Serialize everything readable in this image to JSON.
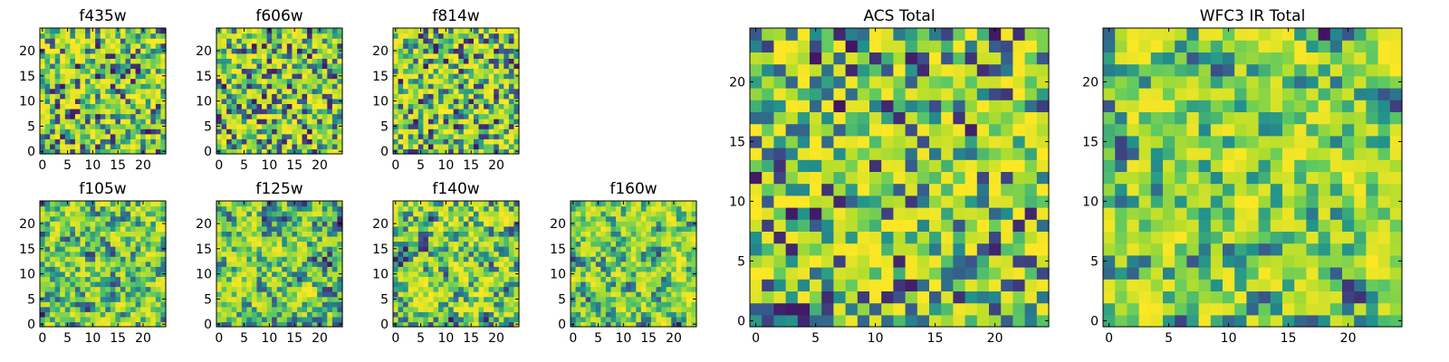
{
  "chart_data": [
    {
      "type": "heatmap",
      "title": "f435w",
      "grid_size": 25,
      "colormap": "viridis",
      "seed": 11,
      "smooth": 0,
      "xticks": [
        "0",
        "5",
        "10",
        "15",
        "20"
      ],
      "yticks": [
        "0",
        "5",
        "10",
        "15",
        "20"
      ],
      "xlim": [
        -0.5,
        24.5
      ],
      "ylim": [
        -0.5,
        24.5
      ]
    },
    {
      "type": "heatmap",
      "title": "f606w",
      "grid_size": 25,
      "colormap": "viridis",
      "seed": 23,
      "smooth": 0,
      "xticks": [
        "0",
        "5",
        "10",
        "15",
        "20"
      ],
      "yticks": [
        "0",
        "5",
        "10",
        "15",
        "20"
      ],
      "xlim": [
        -0.5,
        24.5
      ],
      "ylim": [
        -0.5,
        24.5
      ]
    },
    {
      "type": "heatmap",
      "title": "f814w",
      "grid_size": 25,
      "colormap": "viridis",
      "seed": 37,
      "smooth": 0,
      "xticks": [
        "0",
        "5",
        "10",
        "15",
        "20"
      ],
      "yticks": [
        "0",
        "5",
        "10",
        "15",
        "20"
      ],
      "xlim": [
        -0.5,
        24.5
      ],
      "ylim": [
        -0.5,
        24.5
      ]
    },
    {
      "type": "heatmap",
      "title": "f105w",
      "grid_size": 25,
      "colormap": "viridis",
      "seed": 41,
      "smooth": 1,
      "xticks": [
        "0",
        "5",
        "10",
        "15",
        "20"
      ],
      "yticks": [
        "0",
        "5",
        "10",
        "15",
        "20"
      ],
      "xlim": [
        -0.5,
        24.5
      ],
      "ylim": [
        -0.5,
        24.5
      ]
    },
    {
      "type": "heatmap",
      "title": "f125w",
      "grid_size": 25,
      "colormap": "viridis",
      "seed": 53,
      "smooth": 1,
      "xticks": [
        "0",
        "5",
        "10",
        "15",
        "20"
      ],
      "yticks": [
        "0",
        "5",
        "10",
        "15",
        "20"
      ],
      "xlim": [
        -0.5,
        24.5
      ],
      "ylim": [
        -0.5,
        24.5
      ]
    },
    {
      "type": "heatmap",
      "title": "f140w",
      "grid_size": 25,
      "colormap": "viridis",
      "seed": 67,
      "smooth": 1,
      "xticks": [
        "0",
        "5",
        "10",
        "15",
        "20"
      ],
      "yticks": [
        "0",
        "5",
        "10",
        "15",
        "20"
      ],
      "xlim": [
        -0.5,
        24.5
      ],
      "ylim": [
        -0.5,
        24.5
      ]
    },
    {
      "type": "heatmap",
      "title": "f160w",
      "grid_size": 25,
      "colormap": "viridis",
      "seed": 79,
      "smooth": 1,
      "xticks": [
        "0",
        "5",
        "10",
        "15",
        "20"
      ],
      "yticks": [
        "0",
        "5",
        "10",
        "15",
        "20"
      ],
      "xlim": [
        -0.5,
        24.5
      ],
      "ylim": [
        -0.5,
        24.5
      ]
    },
    {
      "type": "heatmap",
      "title": "ACS Total",
      "grid_size": 25,
      "colormap": "viridis",
      "seed": 97,
      "smooth": 0,
      "xticks": [
        "0",
        "5",
        "10",
        "15",
        "20"
      ],
      "yticks": [
        "0",
        "5",
        "10",
        "15",
        "20"
      ],
      "xlim": [
        -0.5,
        24.5
      ],
      "ylim": [
        -0.5,
        24.5
      ]
    },
    {
      "type": "heatmap",
      "title": "WFC3 IR Total",
      "grid_size": 25,
      "colormap": "viridis",
      "seed": 113,
      "smooth": 1,
      "xticks": [
        "0",
        "5",
        "10",
        "15",
        "20"
      ],
      "yticks": [
        "0",
        "5",
        "10",
        "15",
        "20"
      ],
      "xlim": [
        -0.5,
        24.5
      ],
      "ylim": [
        -0.5,
        24.5
      ]
    }
  ]
}
